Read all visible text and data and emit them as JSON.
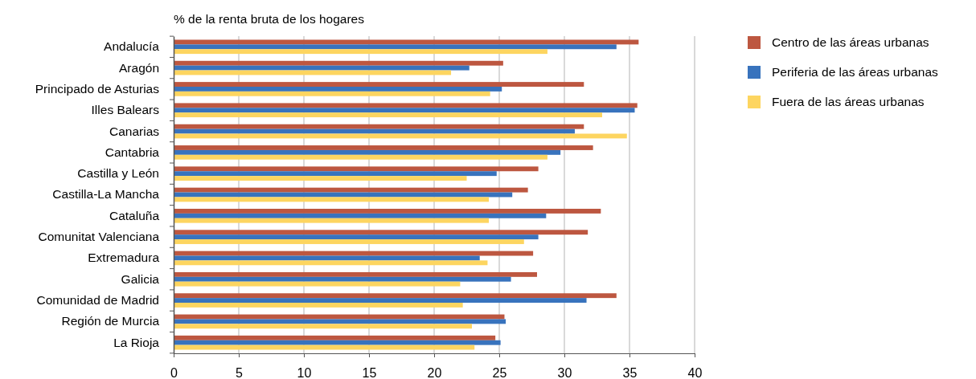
{
  "chart_data": {
    "type": "bar",
    "orientation": "horizontal",
    "xlabel": "% de la renta bruta de los hogares",
    "categories": [
      "Andalucía",
      "Aragón",
      "Principado de Asturias",
      "Illes Balears",
      "Canarias",
      "Cantabria",
      "Castilla y León",
      "Castilla-La Mancha",
      "Cataluña",
      "Comunitat Valenciana",
      "Extremadura",
      "Galicia",
      "Comunidad de Madrid",
      "Región de Murcia",
      "La Rioja"
    ],
    "series": [
      {
        "name": "Centro de las áreas urbanas",
        "color": "#bd5740",
        "values": [
          35.7,
          25.3,
          31.5,
          35.6,
          31.5,
          32.2,
          28.0,
          27.2,
          32.8,
          31.8,
          27.6,
          27.9,
          34.0,
          25.4,
          24.7
        ]
      },
      {
        "name": "Periferia de las áreas urbanas",
        "color": "#3873bd",
        "values": [
          34.0,
          22.7,
          25.2,
          35.4,
          30.8,
          29.7,
          24.8,
          26.0,
          28.6,
          28.0,
          23.5,
          25.9,
          31.7,
          25.5,
          25.1
        ]
      },
      {
        "name": "Fuera de las áreas urbanas",
        "color": "#fdd560",
        "values": [
          28.7,
          21.3,
          24.3,
          32.9,
          34.8,
          28.7,
          22.5,
          24.2,
          24.2,
          26.9,
          24.1,
          22.0,
          22.2,
          22.9,
          23.1
        ]
      }
    ],
    "xlim": [
      0,
      40
    ],
    "xticks": [
      0,
      5,
      10,
      15,
      20,
      25,
      30,
      35,
      40
    ],
    "grid": "x",
    "legend": "top right"
  }
}
